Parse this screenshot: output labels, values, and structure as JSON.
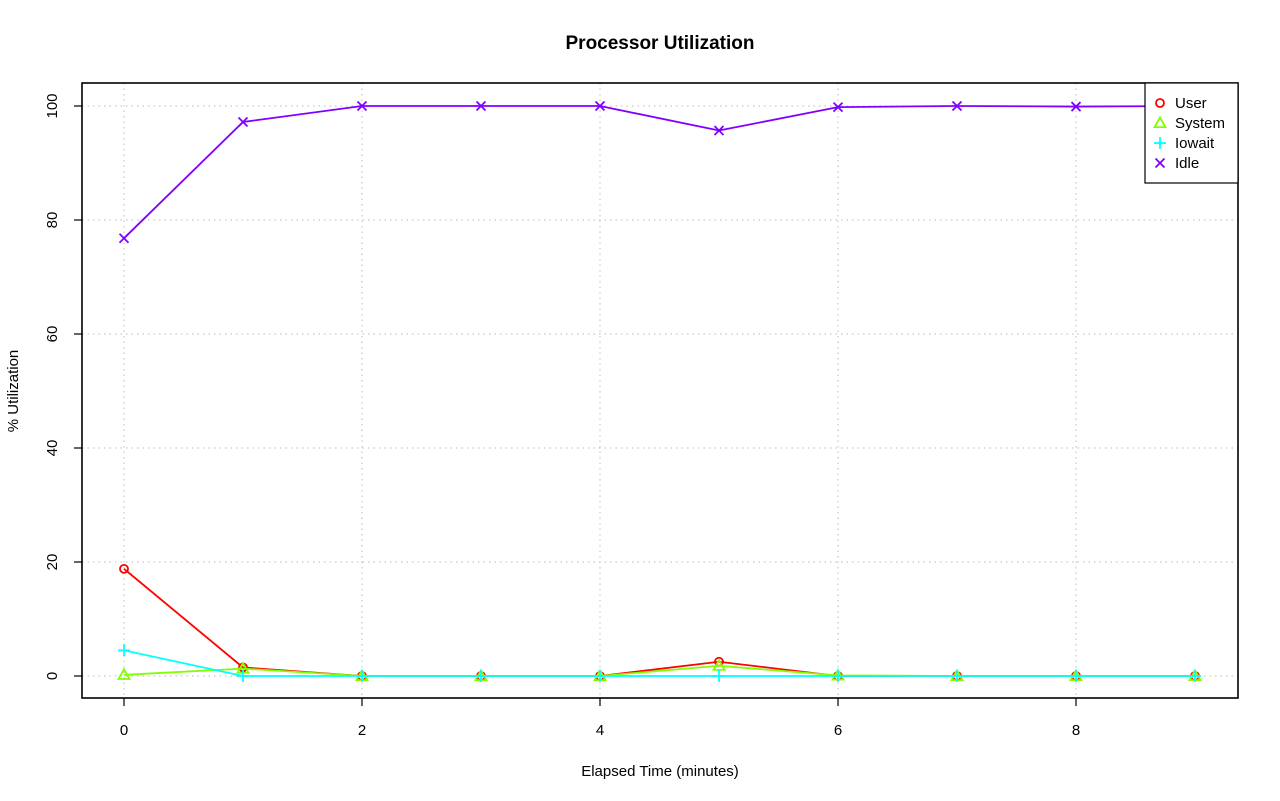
{
  "chart_data": {
    "type": "line",
    "title": "Processor Utilization",
    "xlabel": "Elapsed Time (minutes)",
    "ylabel": "% Utilization",
    "x": [
      0,
      1,
      2,
      3,
      4,
      5,
      6,
      7,
      8,
      9
    ],
    "xlim": [
      0,
      9
    ],
    "ylim": [
      0,
      100
    ],
    "xticks": [
      0,
      2,
      4,
      6,
      8
    ],
    "yticks": [
      0,
      20,
      40,
      60,
      80,
      100
    ],
    "grid": true,
    "legend_position": "top-right",
    "series": [
      {
        "name": "User",
        "color": "#ff0000",
        "marker": "circle",
        "values": [
          18.8,
          1.5,
          0,
          0,
          0,
          2.5,
          0,
          0,
          0,
          0
        ]
      },
      {
        "name": "System",
        "color": "#80ff00",
        "marker": "triangle",
        "values": [
          0.2,
          1.3,
          0,
          0,
          0,
          1.8,
          0.1,
          0,
          0,
          0
        ]
      },
      {
        "name": "Iowait",
        "color": "#00ffff",
        "marker": "plus",
        "values": [
          4.5,
          0,
          0,
          0,
          0,
          0,
          0,
          0,
          0,
          0
        ]
      },
      {
        "name": "Idle",
        "color": "#8000ff",
        "marker": "cross",
        "values": [
          76.8,
          97.2,
          100,
          100,
          100,
          95.7,
          99.8,
          100,
          99.9,
          100
        ]
      }
    ]
  }
}
